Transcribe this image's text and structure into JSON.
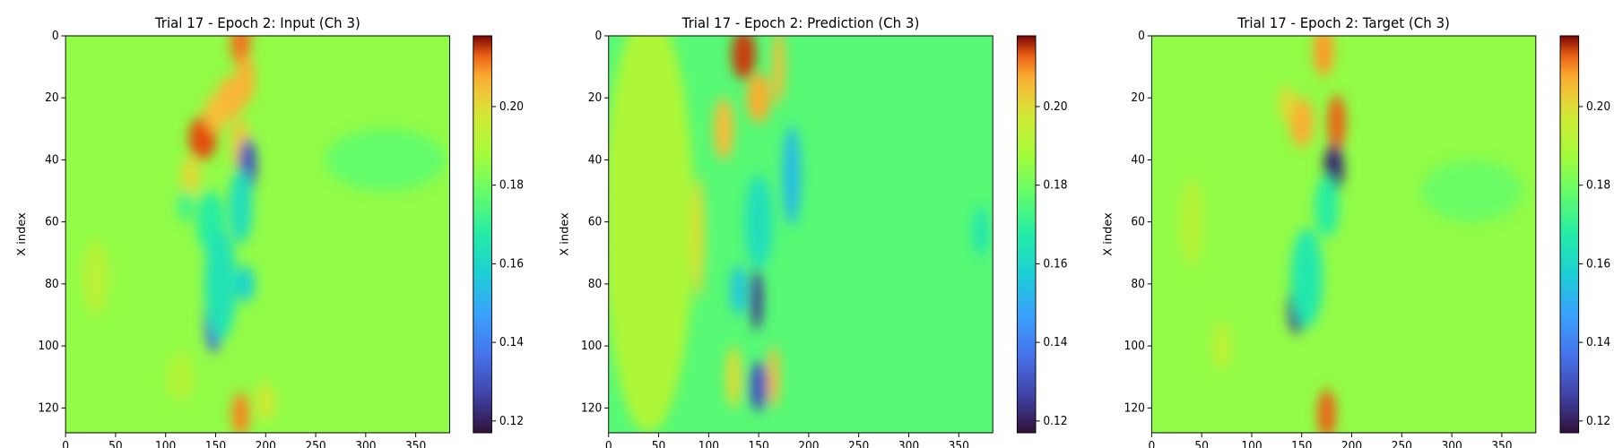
{
  "chart_data": [
    {
      "type": "heatmap",
      "title": "Trial 17 - Epoch 2: Input (Ch 3)",
      "xlabel": "Y index",
      "ylabel": "X index",
      "xlim": [
        0,
        384
      ],
      "ylim": [
        128,
        0
      ],
      "xticks": [
        "0",
        "50",
        "100",
        "150",
        "200",
        "250",
        "300",
        "350"
      ],
      "yticks": [
        "0",
        "20",
        "40",
        "60",
        "80",
        "100",
        "120"
      ],
      "colorbar": {
        "range": [
          0.117,
          0.218
        ],
        "ticks": [
          "0.12",
          "0.14",
          "0.16",
          "0.18",
          "0.20"
        ],
        "colormap": "turbo"
      },
      "background_value": 0.185,
      "features": [
        {
          "x": 175,
          "y": 2,
          "rx": 10,
          "ry": 8,
          "v": 0.212
        },
        {
          "x": 180,
          "y": 14,
          "rx": 9,
          "ry": 8,
          "v": 0.207
        },
        {
          "x": 165,
          "y": 20,
          "rx": 14,
          "ry": 7,
          "v": 0.206
        },
        {
          "x": 137,
          "y": 33,
          "rx": 14,
          "ry": 7,
          "v": 0.214
        },
        {
          "x": 150,
          "y": 25,
          "rx": 12,
          "ry": 6,
          "v": 0.205
        },
        {
          "x": 125,
          "y": 45,
          "rx": 10,
          "ry": 6,
          "v": 0.2
        },
        {
          "x": 175,
          "y": 35,
          "rx": 10,
          "ry": 8,
          "v": 0.203
        },
        {
          "x": 182,
          "y": 42,
          "rx": 9,
          "ry": 9,
          "v": 0.13
        },
        {
          "x": 175,
          "y": 55,
          "rx": 12,
          "ry": 12,
          "v": 0.163
        },
        {
          "x": 145,
          "y": 60,
          "rx": 14,
          "ry": 10,
          "v": 0.168
        },
        {
          "x": 180,
          "y": 80,
          "rx": 9,
          "ry": 6,
          "v": 0.159
        },
        {
          "x": 120,
          "y": 55,
          "rx": 8,
          "ry": 5,
          "v": 0.172
        },
        {
          "x": 148,
          "y": 92,
          "rx": 9,
          "ry": 10,
          "v": 0.135
        },
        {
          "x": 155,
          "y": 80,
          "rx": 16,
          "ry": 18,
          "v": 0.164
        },
        {
          "x": 175,
          "y": 122,
          "rx": 9,
          "ry": 7,
          "v": 0.211
        },
        {
          "x": 200,
          "y": 118,
          "rx": 10,
          "ry": 6,
          "v": 0.197
        },
        {
          "x": 115,
          "y": 110,
          "rx": 14,
          "ry": 8,
          "v": 0.191
        },
        {
          "x": 30,
          "y": 78,
          "rx": 14,
          "ry": 12,
          "v": 0.192
        },
        {
          "x": 320,
          "y": 40,
          "rx": 60,
          "ry": 10,
          "v": 0.178
        }
      ]
    },
    {
      "type": "heatmap",
      "title": "Trial 17 - Epoch 2: Prediction (Ch 3)",
      "xlabel": "Y index",
      "ylabel": "X index",
      "xlim": [
        0,
        384
      ],
      "ylim": [
        128,
        0
      ],
      "xticks": [
        "0",
        "50",
        "100",
        "150",
        "200",
        "250",
        "300",
        "350"
      ],
      "yticks": [
        "0",
        "20",
        "40",
        "60",
        "80",
        "100",
        "120"
      ],
      "colorbar": {
        "range": [
          0.117,
          0.218
        ],
        "ticks": [
          "0.12",
          "0.14",
          "0.16",
          "0.18",
          "0.20"
        ],
        "colormap": "turbo"
      },
      "background_value": 0.176,
      "features": [
        {
          "x": 40,
          "y": 60,
          "rx": 45,
          "ry": 68,
          "v": 0.19
        },
        {
          "x": 135,
          "y": 6,
          "rx": 12,
          "ry": 8,
          "v": 0.215
        },
        {
          "x": 150,
          "y": 20,
          "rx": 12,
          "ry": 8,
          "v": 0.207
        },
        {
          "x": 115,
          "y": 30,
          "rx": 10,
          "ry": 10,
          "v": 0.205
        },
        {
          "x": 170,
          "y": 10,
          "rx": 6,
          "ry": 12,
          "v": 0.205
        },
        {
          "x": 183,
          "y": 45,
          "rx": 9,
          "ry": 16,
          "v": 0.153
        },
        {
          "x": 150,
          "y": 60,
          "rx": 14,
          "ry": 15,
          "v": 0.163
        },
        {
          "x": 148,
          "y": 85,
          "rx": 6,
          "ry": 10,
          "v": 0.125
        },
        {
          "x": 130,
          "y": 82,
          "rx": 8,
          "ry": 8,
          "v": 0.155
        },
        {
          "x": 150,
          "y": 113,
          "rx": 9,
          "ry": 8,
          "v": 0.13
        },
        {
          "x": 165,
          "y": 110,
          "rx": 6,
          "ry": 10,
          "v": 0.205
        },
        {
          "x": 125,
          "y": 110,
          "rx": 8,
          "ry": 10,
          "v": 0.2
        },
        {
          "x": 90,
          "y": 65,
          "rx": 6,
          "ry": 20,
          "v": 0.2
        },
        {
          "x": 372,
          "y": 63,
          "rx": 8,
          "ry": 8,
          "v": 0.165
        }
      ]
    },
    {
      "type": "heatmap",
      "title": "Trial 17 - Epoch 2: Target (Ch 3)",
      "xlabel": "Y index",
      "ylabel": "X index",
      "xlim": [
        0,
        384
      ],
      "ylim": [
        128,
        0
      ],
      "xticks": [
        "0",
        "50",
        "100",
        "150",
        "200",
        "250",
        "300",
        "350"
      ],
      "yticks": [
        "0",
        "20",
        "40",
        "60",
        "80",
        "100",
        "120"
      ],
      "colorbar": {
        "range": [
          0.117,
          0.218
        ],
        "ticks": [
          "0.12",
          "0.14",
          "0.16",
          "0.18",
          "0.20"
        ],
        "colormap": "turbo"
      },
      "background_value": 0.185,
      "features": [
        {
          "x": 172,
          "y": 5,
          "rx": 10,
          "ry": 8,
          "v": 0.21
        },
        {
          "x": 185,
          "y": 28,
          "rx": 9,
          "ry": 9,
          "v": 0.213
        },
        {
          "x": 150,
          "y": 28,
          "rx": 12,
          "ry": 8,
          "v": 0.207
        },
        {
          "x": 135,
          "y": 22,
          "rx": 8,
          "ry": 6,
          "v": 0.2
        },
        {
          "x": 182,
          "y": 43,
          "rx": 10,
          "ry": 8,
          "v": 0.122
        },
        {
          "x": 175,
          "y": 55,
          "rx": 12,
          "ry": 10,
          "v": 0.168
        },
        {
          "x": 145,
          "y": 88,
          "rx": 9,
          "ry": 8,
          "v": 0.125
        },
        {
          "x": 155,
          "y": 78,
          "rx": 16,
          "ry": 16,
          "v": 0.166
        },
        {
          "x": 175,
          "y": 122,
          "rx": 9,
          "ry": 8,
          "v": 0.213
        },
        {
          "x": 40,
          "y": 60,
          "rx": 12,
          "ry": 14,
          "v": 0.192
        },
        {
          "x": 70,
          "y": 100,
          "rx": 10,
          "ry": 8,
          "v": 0.193
        },
        {
          "x": 320,
          "y": 50,
          "rx": 50,
          "ry": 10,
          "v": 0.179
        }
      ]
    }
  ]
}
